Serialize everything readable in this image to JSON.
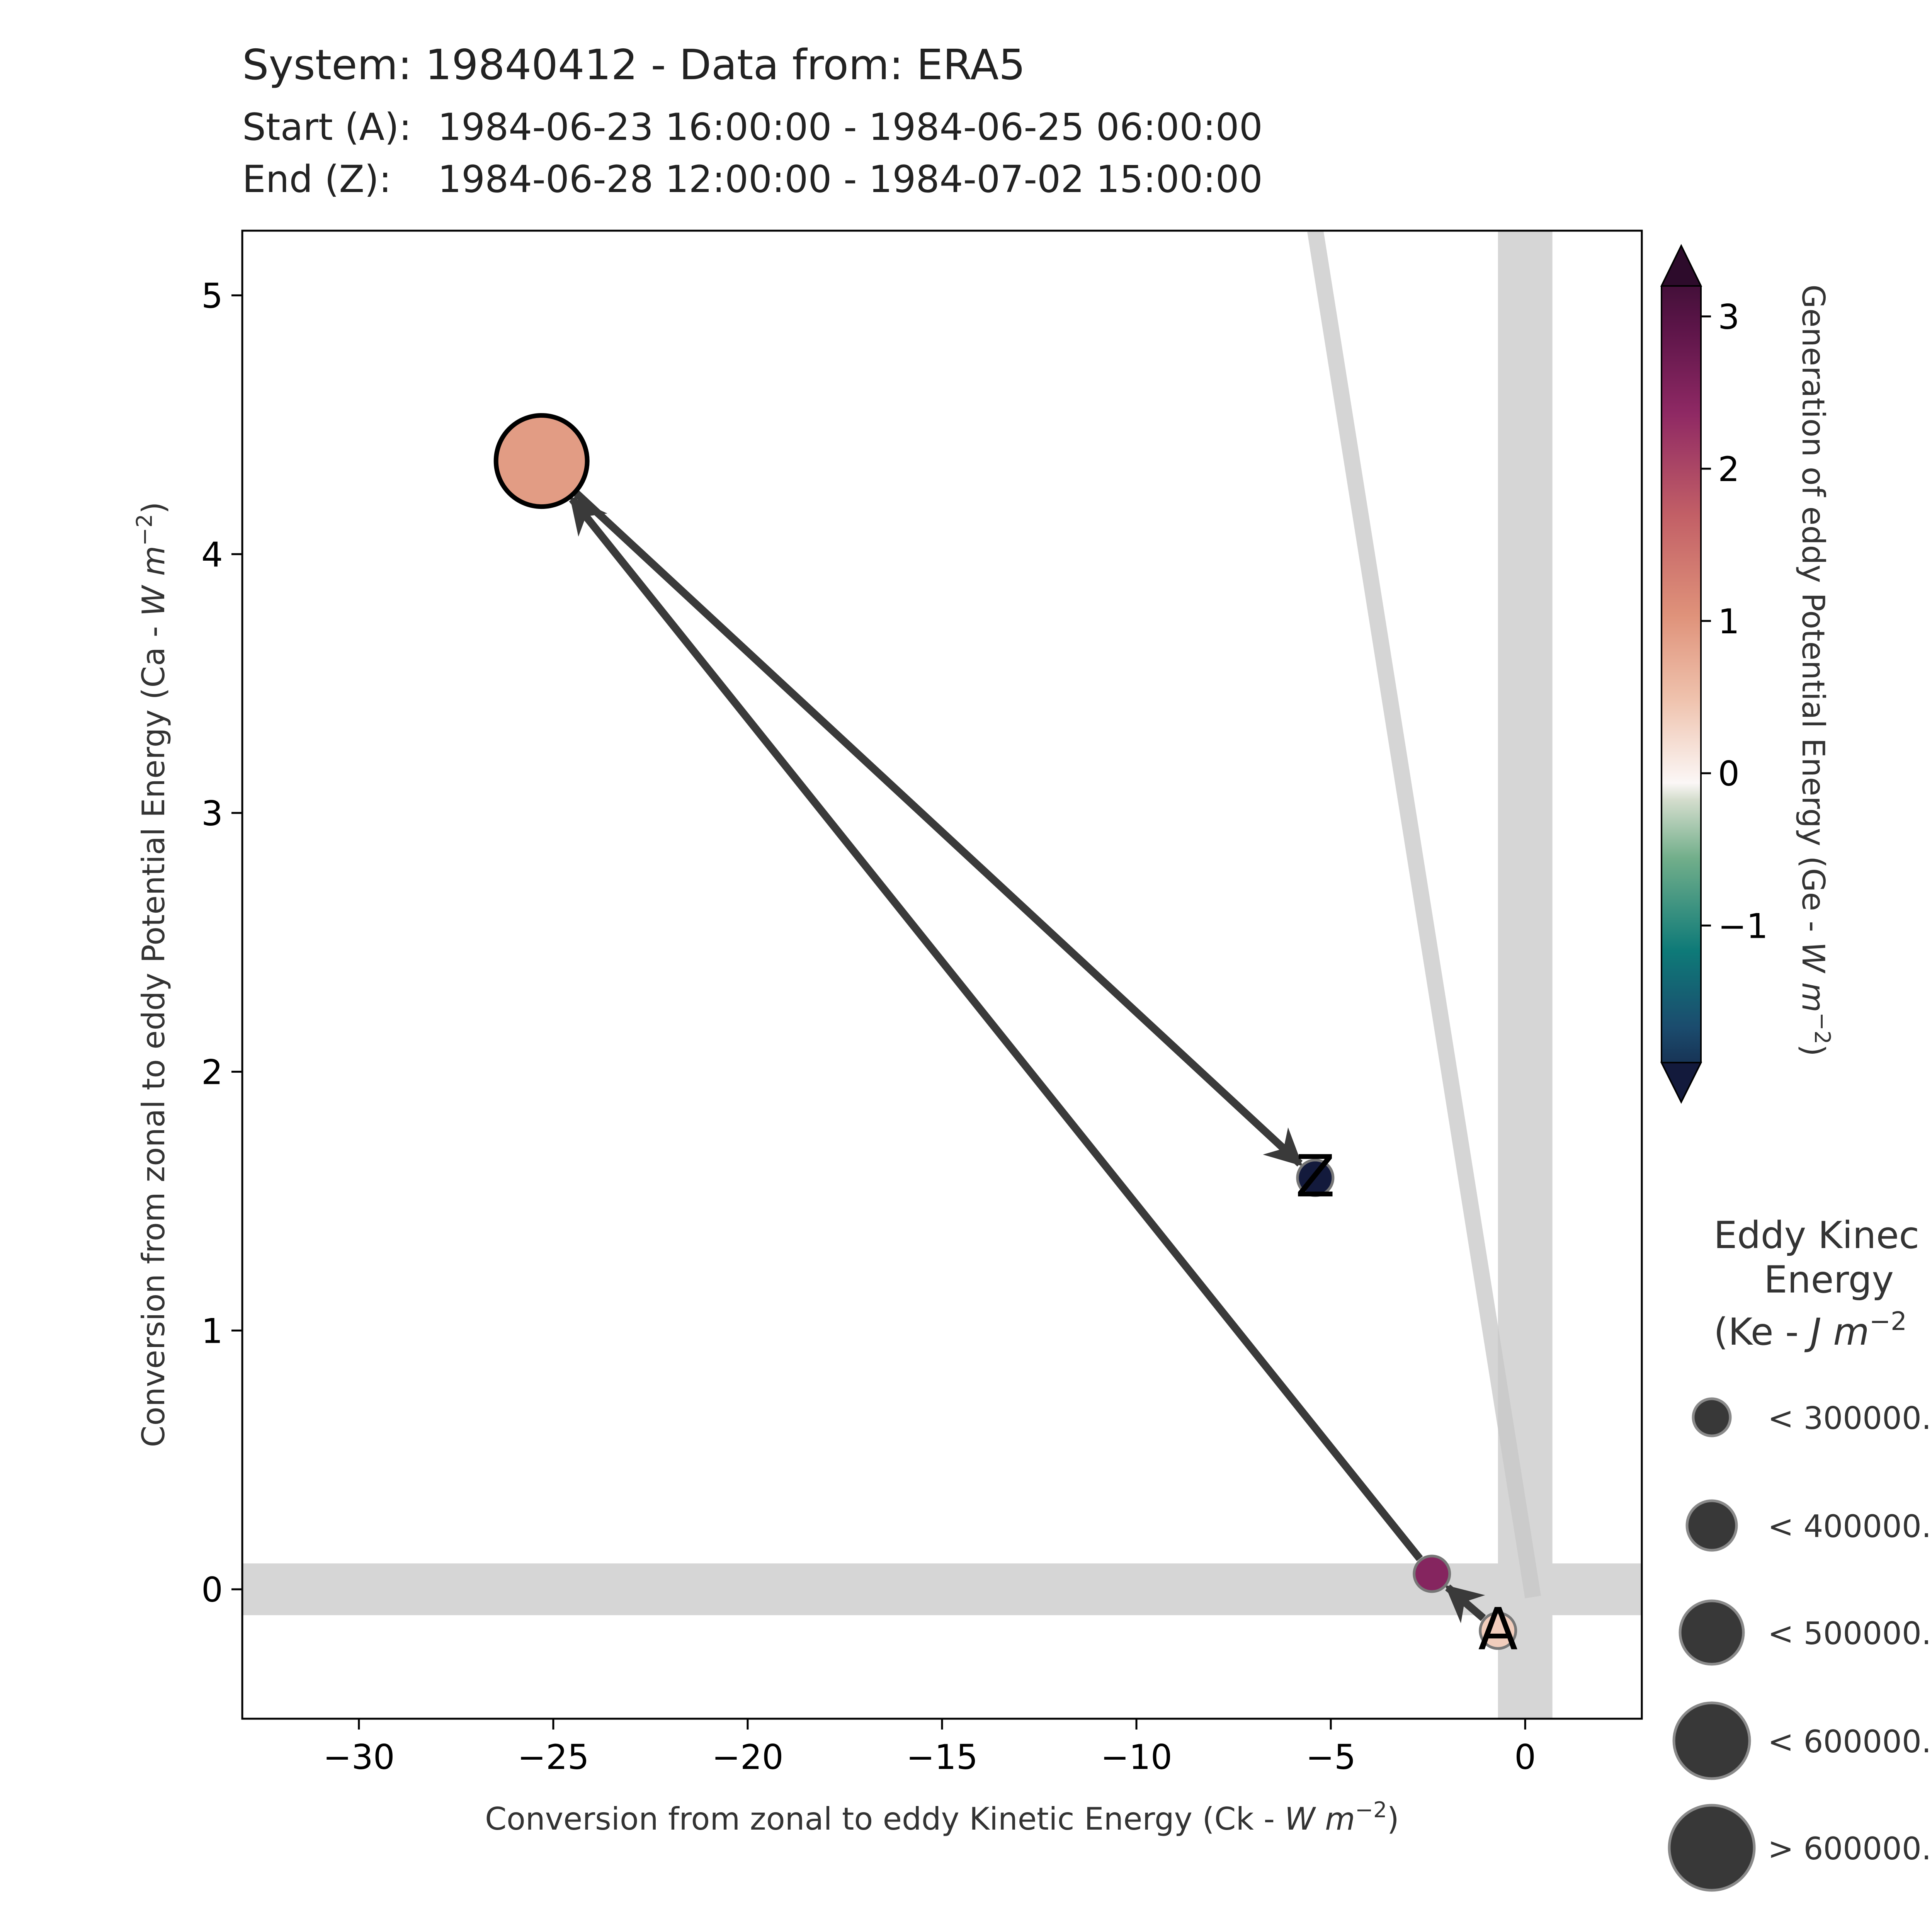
{
  "header": {
    "title": "System: 19840412 - Data from: ERA5",
    "start_label": "Start (A):",
    "start_range": "1984-06-23 16:00:00 - 1984-06-25 06:00:00",
    "end_label": "End (Z):",
    "end_range": "1984-06-28 12:00:00 - 1984-07-02 15:00:00"
  },
  "chart_data": {
    "type": "scatter",
    "title": "System: 19840412 - Data from: ERA5",
    "xlabel_text": "Conversion from zonal to eddy Kinetic Energy (Ck - ",
    "xlabel_unit": "W m",
    "xlabel_exp": "−2",
    "ylabel_text": "Conversion from zonal to eddy Potential Energy (Ca - ",
    "ylabel_unit": "W m",
    "ylabel_exp": "−2",
    "xlim": [
      -33,
      3
    ],
    "ylim": [
      -0.5,
      5.25
    ],
    "xticks": [
      -30,
      -25,
      -20,
      -15,
      -10,
      -5,
      0
    ],
    "xtick_labels": [
      "−30",
      "−25",
      "−20",
      "−15",
      "−10",
      "−5",
      "0"
    ],
    "yticks": [
      0,
      1,
      2,
      3,
      4,
      5
    ],
    "ytick_labels": [
      "0",
      "1",
      "2",
      "3",
      "4",
      "5"
    ],
    "grid": false,
    "reference_bands": [
      {
        "orientation": "horizontal",
        "range": [
          -0.1,
          0.1
        ]
      },
      {
        "orientation": "vertical",
        "range": [
          -0.7,
          0.7
        ]
      }
    ],
    "trend_line": {
      "x": [
        -5.4,
        0.2
      ],
      "y": [
        5.25,
        -0.03
      ]
    },
    "points": [
      {
        "label": "A",
        "x": -0.7,
        "y": -0.16,
        "ge": 0.4,
        "ke_class": 0
      },
      {
        "label": "",
        "x": -2.4,
        "y": 0.06,
        "ge": 2.3,
        "ke_class": 0
      },
      {
        "label": "",
        "x": -25.3,
        "y": 4.36,
        "ge": 0.9,
        "ke_class": 4
      },
      {
        "label": "Z",
        "x": -5.4,
        "y": 1.59,
        "ge": -1.9,
        "ke_class": 0
      }
    ],
    "colorbar": {
      "label_text": "Generation of eddy Potential Energy (Ge - ",
      "label_unit": "W m",
      "label_exp": "−2",
      "range": [
        -1.9,
        3.2
      ],
      "ticks": [
        3,
        2,
        1,
        0,
        -1
      ],
      "tick_labels": [
        "3",
        "2",
        "1",
        "0",
        "−1"
      ],
      "colormap": "diverging navy-teal-white-salmon-magenta-purple",
      "stops": [
        {
          "v": -1.9,
          "c": "#131a3c"
        },
        {
          "v": -1.45,
          "c": "#1b4c6e"
        },
        {
          "v": -1.0,
          "c": "#0e7a78"
        },
        {
          "v": -0.45,
          "c": "#71ae8a"
        },
        {
          "v": -0.1,
          "c": "#d4ddcd"
        },
        {
          "v": 0.0,
          "c": "#fbf7f6"
        },
        {
          "v": 0.5,
          "c": "#efc2ad"
        },
        {
          "v": 1.0,
          "c": "#df927a"
        },
        {
          "v": 1.6,
          "c": "#c25f66"
        },
        {
          "v": 2.2,
          "c": "#8f2964"
        },
        {
          "v": 2.7,
          "c": "#5d1549"
        },
        {
          "v": 3.2,
          "c": "#2d0b2b"
        }
      ]
    },
    "size_legend": {
      "title_lines": [
        "Eddy Kinec",
        "Energy",
        "(Ke - "
      ],
      "title_unit": "J m",
      "title_exp": "−2",
      "entries": [
        "< 300000.",
        "< 400000.",
        "< 500000.",
        "< 600000.",
        "> 600000."
      ]
    }
  },
  "colors": {
    "arrow": "#3a3a3a",
    "band": "#d6d6d6",
    "trend": "#c8c8c8",
    "legend_marker": "#383838",
    "text": "#222222",
    "axis_label": "#333333"
  }
}
